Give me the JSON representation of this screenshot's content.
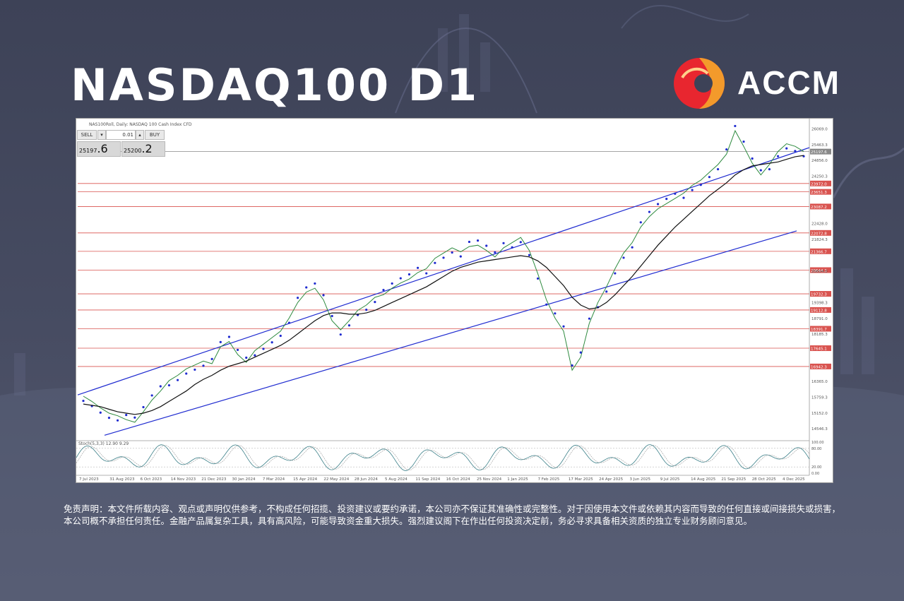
{
  "page": {
    "title": "NASDAQ100 D1"
  },
  "logo": {
    "text": "ACCM",
    "colors": {
      "red": "#e8262f",
      "orange": "#f39a2b"
    }
  },
  "chart_header": {
    "label": "NAS100Roll, Daily: NASDAQ 100 Cash Index CFD"
  },
  "trade_panel": {
    "sell_label": "SELL",
    "buy_label": "BUY",
    "lot": "0.01",
    "sell_price_small": "25197",
    "sell_price_big": ".6",
    "buy_price_small": "25200",
    "buy_price_big": ".2"
  },
  "indicator": {
    "label": "Stoch(5,3,3) 12.90 9.29",
    "levels": [
      "100.00",
      "80.00",
      "20.00",
      "0.00"
    ]
  },
  "disclaimer": "免责声明：本文件所载内容、观点或声明仅供参考，不构成任何招揽、投资建议或要约承诺，本公司亦不保证其准确性或完整性。对于因使用本文件或依赖其内容而导致的任何直接或间接损失或损害，本公司概不承担任何责任。金融产品属复杂工具，具有高风险，可能导致资金重大损失。强烈建议阁下在作出任何投资决定前，务必寻求具备相关资质的独立专业财务顾问意见。",
  "chart_data": {
    "type": "line",
    "title": "NASDAQ100 D1",
    "x_tick_labels": [
      "7 Jul 2023",
      "31 Aug 2023",
      "6 Oct 2023",
      "14 Nov 2023",
      "21 Dec 2023",
      "30 Jan 2024",
      "7 Mar 2024",
      "15 Apr 2024",
      "22 May 2024",
      "28 Jun 2024",
      "5 Aug 2024",
      "11 Sep 2024",
      "16 Oct 2024",
      "25 Nov 2024",
      "1 Jan 2025",
      "7 Feb 2025",
      "17 Mar 2025",
      "24 Apr 2025",
      "3 Jun 2025",
      "9 Jul 2025",
      "14 Aug 2025",
      "21 Sep 2025",
      "28 Oct 2025",
      "4 Dec 2025"
    ],
    "y_ticks": [
      "26069.0",
      "25463.3",
      "24856.0",
      "24250.3",
      "22428.0",
      "21824.3",
      "20604.0",
      "19398.3",
      "18791.0",
      "18185.3",
      "16365.0",
      "15759.3",
      "15152.0",
      "14546.3"
    ],
    "ylim": [
      14200,
      26300
    ],
    "horizontal_levels": [
      "23972.0",
      "23651.3",
      "23087.2",
      "22072.8",
      "21366.7",
      "20644.3",
      "19732.3",
      "19112.8",
      "18391.7",
      "17645.1",
      "16942.3"
    ],
    "current_price": "25197.6",
    "series": [
      {
        "values": [
          15800,
          15600,
          15350,
          15150,
          15050,
          14900,
          14800,
          15200,
          15650,
          16000,
          16400,
          16600,
          16850,
          17000,
          17150,
          17050,
          17700,
          17900,
          17400,
          17100,
          17550,
          17800,
          18050,
          18300,
          18800,
          19400,
          19800,
          19950,
          19500,
          18700,
          18350,
          18700,
          19100,
          19300,
          19600,
          19700,
          19950,
          20150,
          20300,
          20550,
          20700,
          21100,
          21300,
          21500,
          21350,
          21550,
          21600,
          21400,
          21150,
          21500,
          21700,
          21900,
          21400,
          20500,
          19500,
          18800,
          18300,
          16800,
          17300,
          18600,
          19400,
          20000,
          20700,
          21300,
          21700,
          22300,
          22700,
          23000,
          23200,
          23400,
          23600,
          23900,
          24100,
          24400,
          24700,
          25100,
          26000,
          25400,
          24750,
          24300,
          24700,
          25200,
          25500,
          25400,
          25197.6
        ]
      },
      {
        "values": [
          15500,
          15450,
          15400,
          15300,
          15200,
          15150,
          15100,
          15150,
          15250,
          15400,
          15600,
          15800,
          16000,
          16250,
          16450,
          16600,
          16800,
          16950,
          17050,
          17150,
          17300,
          17450,
          17600,
          17750,
          17950,
          18200,
          18450,
          18700,
          18900,
          19000,
          19000,
          18950,
          18950,
          19000,
          19100,
          19250,
          19400,
          19550,
          19700,
          19850,
          20000,
          20200,
          20400,
          20600,
          20750,
          20850,
          20950,
          21000,
          21050,
          21100,
          21150,
          21200,
          21150,
          21000,
          20750,
          20400,
          20050,
          19600,
          19300,
          19150,
          19200,
          19400,
          19700,
          20050,
          20400,
          20800,
          21200,
          21600,
          21950,
          22300,
          22600,
          22900,
          23200,
          23500,
          23750,
          24000,
          24300,
          24500,
          24650,
          24700,
          24750,
          24800,
          24900,
          25000,
          25050
        ]
      }
    ],
    "stochastic": {
      "k": 12.9,
      "d": 9.29,
      "range": [
        0,
        100
      ]
    }
  }
}
